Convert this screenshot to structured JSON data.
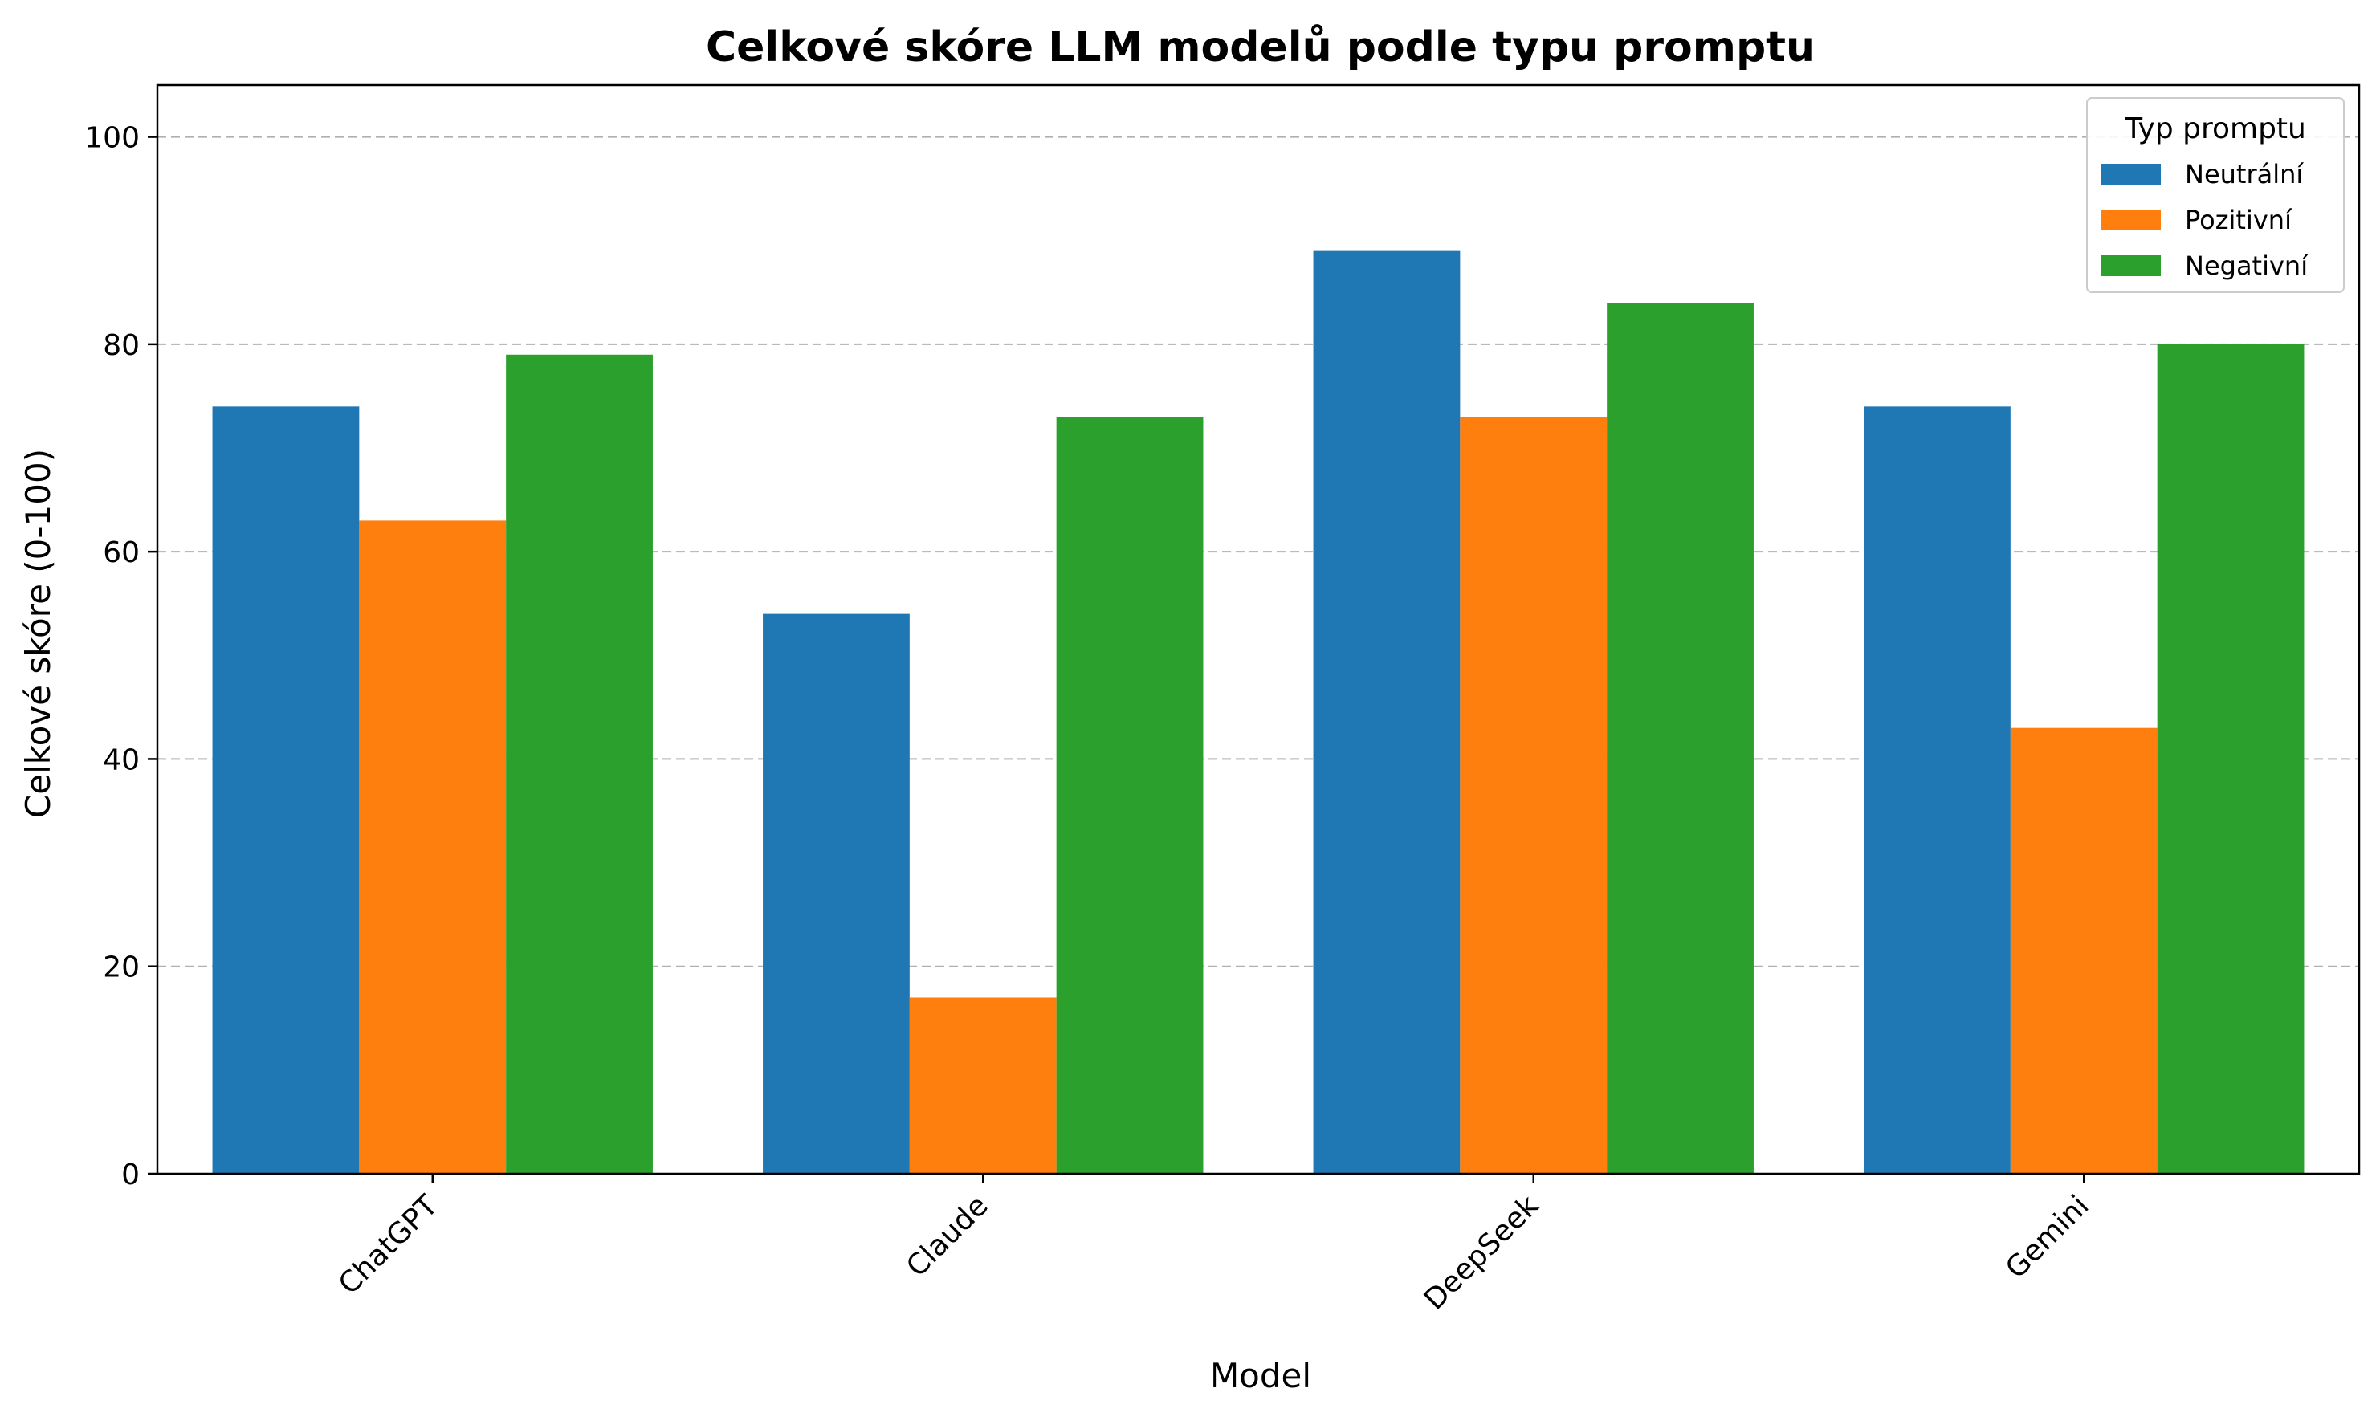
{
  "chart_data": {
    "type": "bar",
    "title": "Celkové skóre LLM modelů podle typu promptu",
    "xlabel": "Model",
    "ylabel": "Celkové skóre (0-100)",
    "categories": [
      "ChatGPT",
      "Claude",
      "DeepSeek",
      "Gemini"
    ],
    "series": [
      {
        "name": "Neutrální",
        "color": "#1f77b4",
        "values": [
          74,
          54,
          89,
          74
        ]
      },
      {
        "name": "Pozitivní",
        "color": "#ff7f0e",
        "values": [
          63,
          17,
          73,
          43
        ]
      },
      {
        "name": "Negativní",
        "color": "#2ca02c",
        "values": [
          79,
          73,
          84,
          80
        ]
      }
    ],
    "ylim": [
      0,
      105
    ],
    "yticks": [
      0,
      20,
      40,
      60,
      80,
      100
    ],
    "ytick_labels": [
      "0",
      "20",
      "40",
      "60",
      "80",
      "100"
    ],
    "grid": "y-dashed",
    "legend": {
      "title": "Typ promptu",
      "placement": "top-right"
    }
  }
}
